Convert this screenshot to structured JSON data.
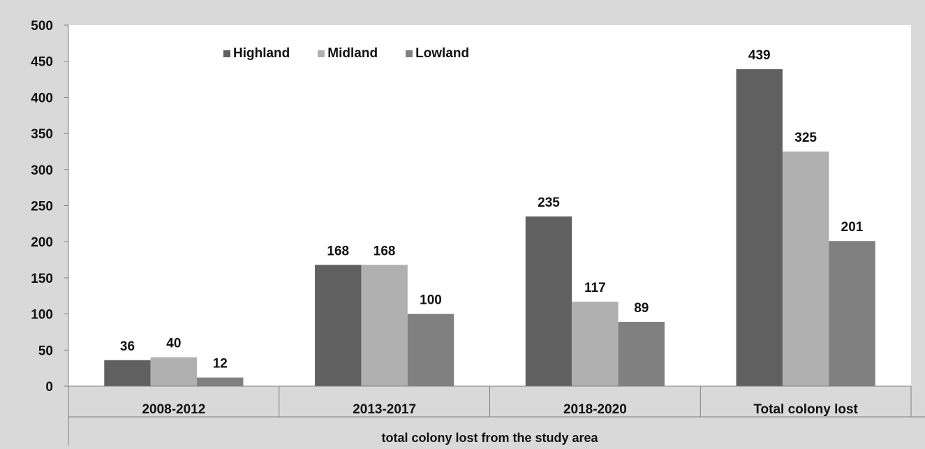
{
  "chart_data": {
    "type": "bar",
    "categories": [
      "2008-2012",
      "2013-2017",
      "2018-2020",
      "Total colony lost"
    ],
    "group_label": "total colony lost from the study area",
    "series": [
      {
        "name": "Highland",
        "values": [
          36,
          168,
          235,
          439
        ],
        "color": "#606060"
      },
      {
        "name": "Midland",
        "values": [
          40,
          168,
          117,
          325
        ],
        "color": "#b0b0b0"
      },
      {
        "name": "Lowland",
        "values": [
          12,
          100,
          89,
          201
        ],
        "color": "#808080"
      }
    ],
    "yticks": [
      "0",
      "50",
      "100",
      "150",
      "200",
      "250",
      "300",
      "350",
      "400",
      "450",
      "500"
    ],
    "ylim": [
      0,
      500
    ],
    "grid": false,
    "legend_position": "top-left",
    "background_color": "#d9d9d9",
    "plot_color": "#ffffff"
  }
}
